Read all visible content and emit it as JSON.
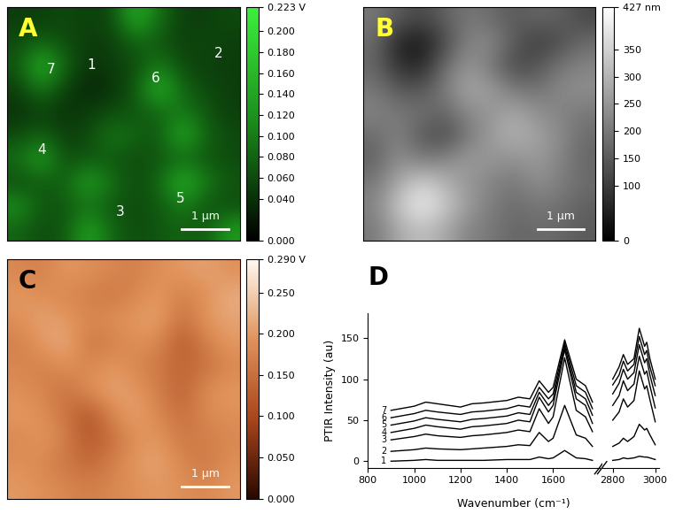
{
  "chart_data": [
    {
      "type": "heatmap",
      "title": "A",
      "xlim": [
        0,
        5
      ],
      "ylim": [
        5,
        0
      ],
      "tick_labels": false,
      "cells": [
        [
          0.05,
          0.05,
          0.06,
          0.05,
          0.06,
          0.15,
          0.09,
          0.05,
          0.05,
          0.06
        ],
        [
          0.06,
          0.08,
          0.06,
          0.05,
          0.05,
          0.08,
          0.07,
          0.05,
          0.06,
          0.05
        ],
        [
          0.07,
          0.16,
          0.08,
          0.04,
          0.05,
          0.06,
          0.1,
          0.06,
          0.05,
          0.05
        ],
        [
          0.05,
          0.1,
          0.05,
          0.03,
          0.04,
          0.07,
          0.16,
          0.08,
          0.06,
          0.05
        ],
        [
          0.04,
          0.05,
          0.04,
          0.05,
          0.06,
          0.07,
          0.08,
          0.1,
          0.07,
          0.05
        ],
        [
          0.06,
          0.08,
          0.05,
          0.06,
          0.1,
          0.08,
          0.07,
          0.15,
          0.08,
          0.06
        ],
        [
          0.09,
          0.14,
          0.06,
          0.07,
          0.07,
          0.06,
          0.07,
          0.08,
          0.07,
          0.06
        ],
        [
          0.06,
          0.07,
          0.08,
          0.14,
          0.09,
          0.06,
          0.08,
          0.16,
          0.1,
          0.07
        ],
        [
          0.12,
          0.07,
          0.07,
          0.09,
          0.07,
          0.06,
          0.07,
          0.1,
          0.07,
          0.06
        ],
        [
          0.08,
          0.06,
          0.07,
          0.14,
          0.08,
          0.06,
          0.07,
          0.08,
          0.07,
          0.13
        ]
      ],
      "color_range": [
        0,
        0.223
      ],
      "color_ticks": [
        {
          "value": 0,
          "label": "0.000"
        },
        {
          "value": 0.04,
          "label": "0.040"
        },
        {
          "value": 0.06,
          "label": "0.060"
        },
        {
          "value": 0.08,
          "label": "0.080"
        },
        {
          "value": 0.1,
          "label": "0.100"
        },
        {
          "value": 0.12,
          "label": "0.120"
        },
        {
          "value": 0.14,
          "label": "0.140"
        },
        {
          "value": 0.16,
          "label": "0.160"
        },
        {
          "value": 0.18,
          "label": "0.180"
        },
        {
          "value": 0.2,
          "label": "0.200"
        },
        {
          "value": 0.223,
          "label": "0.223 V"
        }
      ],
      "scale_bar": {
        "length": 1,
        "label": "1 µm"
      },
      "annotations": [
        {
          "text": "1",
          "x": 1.81,
          "y": 1.24
        },
        {
          "text": "2",
          "x": 4.54,
          "y": 0.99
        },
        {
          "text": "3",
          "x": 2.42,
          "y": 4.39
        },
        {
          "text": "4",
          "x": 0.74,
          "y": 3.05
        },
        {
          "text": "5",
          "x": 3.72,
          "y": 4.1
        },
        {
          "text": "6",
          "x": 3.19,
          "y": 1.53
        },
        {
          "text": "7",
          "x": 0.94,
          "y": 1.34
        }
      ]
    },
    {
      "type": "heatmap",
      "title": "B",
      "xlim": [
        0,
        5
      ],
      "ylim": [
        5,
        0
      ],
      "tick_labels": false,
      "cells": [
        [
          200,
          150,
          120,
          160,
          200,
          180,
          150,
          170,
          160,
          120
        ],
        [
          180,
          60,
          40,
          120,
          220,
          230,
          150,
          100,
          130,
          180
        ],
        [
          170,
          80,
          60,
          180,
          250,
          200,
          120,
          140,
          200,
          220
        ],
        [
          200,
          150,
          140,
          210,
          280,
          260,
          200,
          190,
          230,
          240
        ],
        [
          220,
          200,
          190,
          170,
          230,
          250,
          280,
          240,
          220,
          200
        ],
        [
          180,
          220,
          150,
          120,
          200,
          260,
          300,
          270,
          230,
          180
        ],
        [
          160,
          240,
          200,
          220,
          260,
          250,
          240,
          260,
          220,
          170
        ],
        [
          200,
          280,
          350,
          300,
          250,
          220,
          200,
          240,
          210,
          180
        ],
        [
          220,
          330,
          400,
          340,
          260,
          210,
          180,
          200,
          190,
          160
        ],
        [
          200,
          280,
          320,
          280,
          220,
          200,
          170,
          180,
          170,
          150
        ]
      ],
      "color_range": [
        0,
        427
      ],
      "color_ticks": [
        0,
        100,
        150,
        200,
        250,
        300,
        350,
        {
          "value": 427,
          "label": "427 nm"
        }
      ],
      "scale_bar": {
        "length": 1,
        "label": "1 µm"
      }
    },
    {
      "type": "heatmap",
      "title": "C",
      "xlim": [
        0,
        5
      ],
      "ylim": [
        5,
        0
      ],
      "tick_labels": false,
      "cells": [
        [
          0.18,
          0.17,
          0.2,
          0.19,
          0.18,
          0.17,
          0.19,
          0.2,
          0.21,
          0.19
        ],
        [
          0.2,
          0.19,
          0.18,
          0.17,
          0.16,
          0.18,
          0.2,
          0.17,
          0.19,
          0.22
        ],
        [
          0.19,
          0.21,
          0.2,
          0.18,
          0.19,
          0.2,
          0.21,
          0.15,
          0.2,
          0.21
        ],
        [
          0.17,
          0.2,
          0.22,
          0.16,
          0.17,
          0.19,
          0.18,
          0.12,
          0.17,
          0.2
        ],
        [
          0.18,
          0.17,
          0.19,
          0.18,
          0.2,
          0.18,
          0.16,
          0.14,
          0.15,
          0.18
        ],
        [
          0.19,
          0.18,
          0.15,
          0.19,
          0.21,
          0.2,
          0.17,
          0.13,
          0.19,
          0.2
        ],
        [
          0.2,
          0.19,
          0.16,
          0.11,
          0.18,
          0.21,
          0.18,
          0.15,
          0.18,
          0.19
        ],
        [
          0.18,
          0.2,
          0.17,
          0.12,
          0.15,
          0.19,
          0.2,
          0.16,
          0.17,
          0.18
        ],
        [
          0.19,
          0.18,
          0.16,
          0.14,
          0.17,
          0.2,
          0.21,
          0.18,
          0.16,
          0.19
        ],
        [
          0.2,
          0.19,
          0.18,
          0.17,
          0.18,
          0.19,
          0.2,
          0.19,
          0.18,
          0.2
        ]
      ],
      "color_range": [
        0,
        0.29
      ],
      "color_ticks": [
        {
          "value": 0,
          "label": "0.000"
        },
        {
          "value": 0.05,
          "label": "0.050"
        },
        {
          "value": 0.1,
          "label": "0.100"
        },
        {
          "value": 0.15,
          "label": "0.150"
        },
        {
          "value": 0.2,
          "label": "0.200"
        },
        {
          "value": 0.25,
          "label": "0.250"
        },
        {
          "value": 0.29,
          "label": "0.290 V"
        }
      ],
      "scale_bar": {
        "length": 1,
        "label": "1 µm"
      }
    },
    {
      "type": "line",
      "title": "D",
      "x_label": "Wavenumber (cm⁻¹)",
      "y_label": "PTIR Intensity (au)",
      "x": [
        900,
        1000,
        1050,
        1100,
        1200,
        1250,
        1300,
        1400,
        1450,
        1500,
        1540,
        1580,
        1600,
        1650,
        1700,
        1740,
        1770,
        2800,
        2830,
        2850,
        2870,
        2900,
        2925,
        2950,
        2960,
        2975,
        3000
      ],
      "xlim": [
        [
          800,
          1800
        ],
        [
          2750,
          3020
        ]
      ],
      "xticks": [
        [
          800,
          1000,
          1200,
          1400,
          1600
        ],
        [
          2800,
          3000
        ]
      ],
      "ylim": [
        -8,
        180
      ],
      "yticks": [
        0,
        50,
        100,
        150
      ],
      "series": [
        {
          "name": "1",
          "color": "#000000",
          "values": [
            0,
            1,
            2,
            1,
            1,
            1,
            1,
            2,
            2,
            2,
            5,
            3,
            4,
            13,
            4,
            3,
            1,
            1,
            2,
            4,
            3,
            4,
            6,
            5,
            5,
            4,
            2
          ]
        },
        {
          "name": "2",
          "color": "#000000",
          "values": [
            12,
            14,
            16,
            15,
            14,
            15,
            16,
            18,
            20,
            19,
            35,
            24,
            28,
            68,
            32,
            28,
            18,
            18,
            22,
            28,
            24,
            30,
            45,
            38,
            40,
            32,
            20
          ]
        },
        {
          "name": "3",
          "color": "#000000",
          "values": [
            26,
            30,
            33,
            31,
            29,
            31,
            32,
            35,
            38,
            36,
            64,
            46,
            54,
            126,
            62,
            54,
            36,
            50,
            60,
            76,
            66,
            74,
            110,
            88,
            92,
            75,
            48
          ]
        },
        {
          "name": "4",
          "color": "#000000",
          "values": [
            35,
            40,
            44,
            42,
            39,
            42,
            43,
            46,
            50,
            48,
            78,
            60,
            68,
            136,
            76,
            68,
            46,
            68,
            80,
            98,
            86,
            94,
            128,
            106,
            110,
            92,
            65
          ]
        },
        {
          "name": "5",
          "color": "#000000",
          "values": [
            44,
            49,
            53,
            51,
            48,
            51,
            52,
            55,
            59,
            57,
            84,
            68,
            75,
            140,
            84,
            76,
            56,
            82,
            95,
            112,
            100,
            108,
            142,
            120,
            125,
            105,
            80
          ]
        },
        {
          "name": "6",
          "color": "#000000",
          "values": [
            53,
            58,
            62,
            60,
            57,
            60,
            61,
            64,
            68,
            66,
            90,
            76,
            82,
            144,
            92,
            84,
            64,
            93,
            105,
            122,
            110,
            118,
            152,
            130,
            135,
            115,
            92
          ]
        },
        {
          "name": "7",
          "color": "#000000",
          "values": [
            62,
            67,
            72,
            70,
            66,
            70,
            71,
            74,
            78,
            76,
            98,
            84,
            90,
            148,
            100,
            92,
            72,
            100,
            115,
            130,
            118,
            125,
            162,
            140,
            145,
            125,
            100
          ]
        }
      ]
    }
  ]
}
